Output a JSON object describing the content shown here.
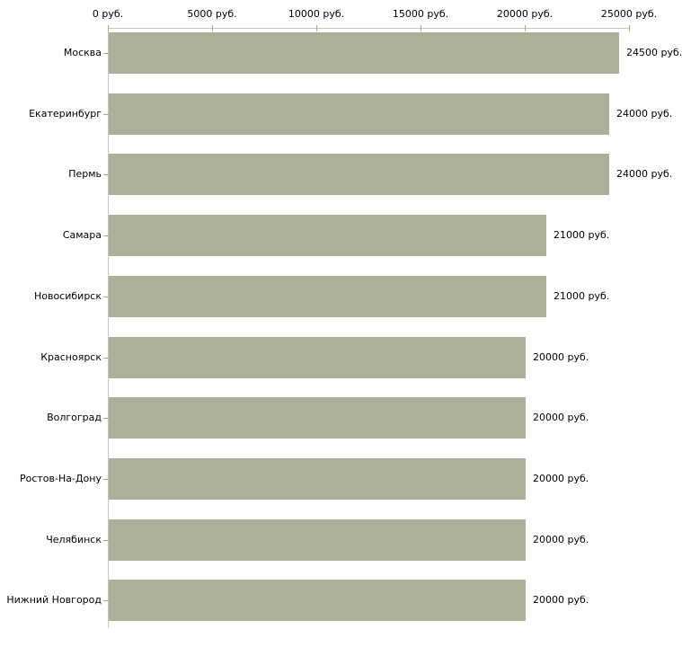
{
  "chart_data": {
    "type": "bar",
    "orientation": "horizontal",
    "title": "",
    "xlabel": "",
    "ylabel": "",
    "categories": [
      "Москва",
      "Екатеринбург",
      "Пермь",
      "Самара",
      "Новосибирск",
      "Красноярск",
      "Волгоград",
      "Ростов-На-Дону",
      "Челябинск",
      "Нижний Новгород"
    ],
    "values": [
      24500,
      24000,
      24000,
      21000,
      21000,
      20000,
      20000,
      20000,
      20000,
      20000
    ],
    "value_labels": [
      "24500 руб.",
      "24000 руб.",
      "24000 руб.",
      "21000 руб.",
      "21000 руб.",
      "20000 руб.",
      "20000 руб.",
      "20000 руб.",
      "20000 руб.",
      "20000 руб."
    ],
    "x_axis": {
      "position": "top",
      "min": 0,
      "max": 25000,
      "ticks": [
        0,
        5000,
        10000,
        15000,
        20000,
        25000
      ],
      "tick_labels": [
        "0 руб.",
        "5000 руб.",
        "10000 руб.",
        "15000 руб.",
        "20000 руб.",
        "25000 руб."
      ]
    },
    "legend": null,
    "grid": false,
    "colors": {
      "bar": "#abb199",
      "axis_line": "#c6c6c6",
      "tick_mark": "#a9a97c",
      "text": "#000000",
      "background": "#ffffff"
    }
  }
}
